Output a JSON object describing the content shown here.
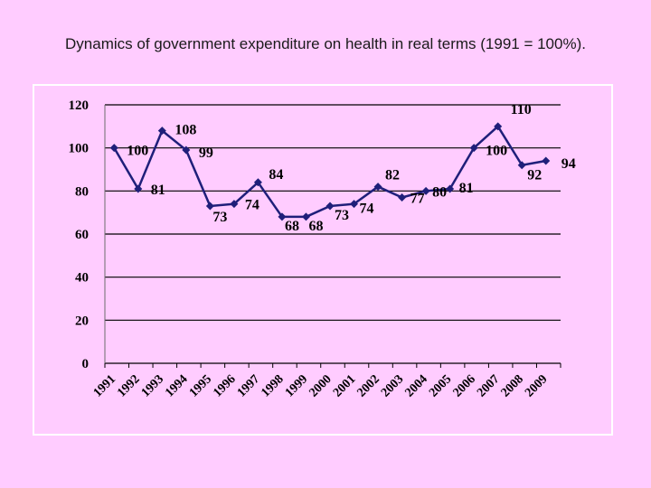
{
  "title": "Dynamics of government expenditure on health in real terms (1991 = 100%).",
  "chart_data": {
    "type": "line",
    "title": "Dynamics of government expenditure on health in real terms (1991 = 100%).",
    "xlabel": "",
    "ylabel": "",
    "categories": [
      "1991",
      "1992",
      "1993",
      "1994",
      "1995",
      "1996",
      "1997",
      "1998",
      "1999",
      "2000",
      "2001",
      "2002",
      "2003",
      "2004",
      "2005",
      "2006",
      "2007",
      "2008",
      "2009"
    ],
    "series": [
      {
        "name": "Government expenditure on health (1991 = 100%)",
        "values": [
          100,
          81,
          108,
          99,
          73,
          74,
          84,
          68,
          68,
          73,
          74,
          82,
          77,
          80,
          81,
          100,
          110,
          92,
          94
        ],
        "labels": [
          "100",
          "81",
          "108",
          "99",
          "73",
          "74",
          "84",
          "68",
          "68",
          "73",
          "74",
          "82",
          "77",
          "80",
          "81",
          "100",
          "110",
          "92",
          "94"
        ]
      }
    ],
    "yticks": [
      "0",
      "20",
      "40",
      "60",
      "80",
      "100",
      "120"
    ],
    "ylim": [
      0,
      120
    ],
    "grid": true,
    "legend": "none",
    "colors": {
      "line": "#1f1f7a",
      "grid": "#000000",
      "frame": "#ffffff"
    }
  }
}
